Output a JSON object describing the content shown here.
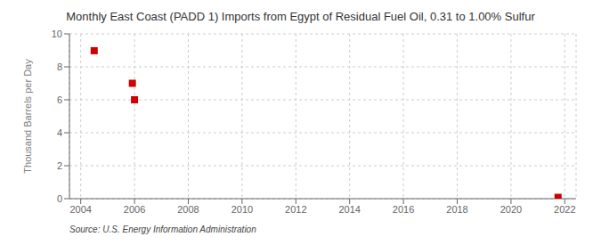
{
  "chart_data": {
    "type": "scatter",
    "title": "Monthly East Coast (PADD 1) Imports from Egypt of Residual Fuel Oil, 0.31 to 1.00% Sulfur",
    "ylabel": "Thousand Barrels per Day",
    "annotations": [
      "Source: U.S. Energy Information Administration"
    ],
    "x": [
      2004.5,
      2005.92,
      2006.0,
      2021.75
    ],
    "values": [
      8.978,
      7.0,
      6.0,
      0.08
    ],
    "color": "#cc0000",
    "marker": "square",
    "xlim": [
      2003.58,
      2022.42
    ],
    "ylim": [
      0,
      10
    ],
    "xticks": [
      2004,
      2006,
      2008,
      2010,
      2012,
      2014,
      2016,
      2018,
      2020,
      2022
    ],
    "yticks": [
      0,
      2,
      4,
      6,
      8,
      10
    ],
    "grid": true
  }
}
